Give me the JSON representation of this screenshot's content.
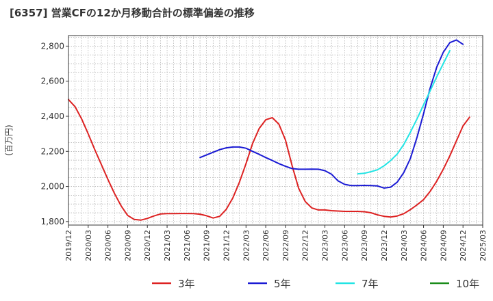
{
  "chart_data": {
    "type": "line",
    "title": "[6357]  営業CFの12か月移動合計の標準偏差の推移",
    "ylabel": "(百万円)",
    "xlabel": "",
    "ylim": [
      1780,
      2860
    ],
    "yticks": [
      1800,
      2000,
      2200,
      2400,
      2600,
      2800
    ],
    "ytick_labels": [
      "1,800",
      "2,000",
      "2,200",
      "2,400",
      "2,600",
      "2,800"
    ],
    "xtick_labels": [
      "2019/12",
      "2020/03",
      "2020/06",
      "2020/09",
      "2020/12",
      "2021/03",
      "2021/06",
      "2021/09",
      "2021/12",
      "2022/03",
      "2022/06",
      "2022/09",
      "2022/12",
      "2023/03",
      "2023/06",
      "2023/09",
      "2023/12",
      "2024/03",
      "2024/06",
      "2024/09",
      "2024/12",
      "2025/03"
    ],
    "x_start": "2019/12",
    "grid": true,
    "legend_position": "bottom",
    "series": [
      {
        "name": "3年",
        "color": "#dd2222",
        "start": "2019/12",
        "values": [
          2495,
          2455,
          2385,
          2300,
          2210,
          2125,
          2040,
          1960,
          1890,
          1835,
          1812,
          1808,
          1818,
          1832,
          1843,
          1845,
          1845,
          1846,
          1846,
          1845,
          1842,
          1833,
          1820,
          1830,
          1870,
          1935,
          2025,
          2130,
          2245,
          2330,
          2380,
          2392,
          2355,
          2265,
          2120,
          1990,
          1915,
          1878,
          1866,
          1866,
          1862,
          1860,
          1858,
          1858,
          1858,
          1856,
          1850,
          1838,
          1830,
          1826,
          1832,
          1845,
          1868,
          1895,
          1925,
          1972,
          2030,
          2098,
          2175,
          2260,
          2345,
          2395
        ]
      },
      {
        "name": "5年",
        "color": "#1a1ad4",
        "start": "2021/08",
        "values": [
          2165,
          2180,
          2195,
          2210,
          2220,
          2225,
          2225,
          2218,
          2200,
          2183,
          2165,
          2148,
          2130,
          2115,
          2102,
          2098,
          2098,
          2099,
          2098,
          2090,
          2070,
          2032,
          2012,
          2005,
          2005,
          2006,
          2005,
          2003,
          1991,
          1996,
          2025,
          2080,
          2160,
          2280,
          2415,
          2560,
          2680,
          2765,
          2820,
          2835,
          2810
        ]
      },
      {
        "name": "7年",
        "color": "#22e4e4",
        "start": "2023/08",
        "values": [
          2072,
          2075,
          2084,
          2095,
          2118,
          2148,
          2185,
          2240,
          2310,
          2385,
          2465,
          2545,
          2625,
          2700,
          2775
        ]
      },
      {
        "name": "10年",
        "color": "#1a8c1a",
        "start": "2024/09",
        "values": []
      }
    ]
  }
}
